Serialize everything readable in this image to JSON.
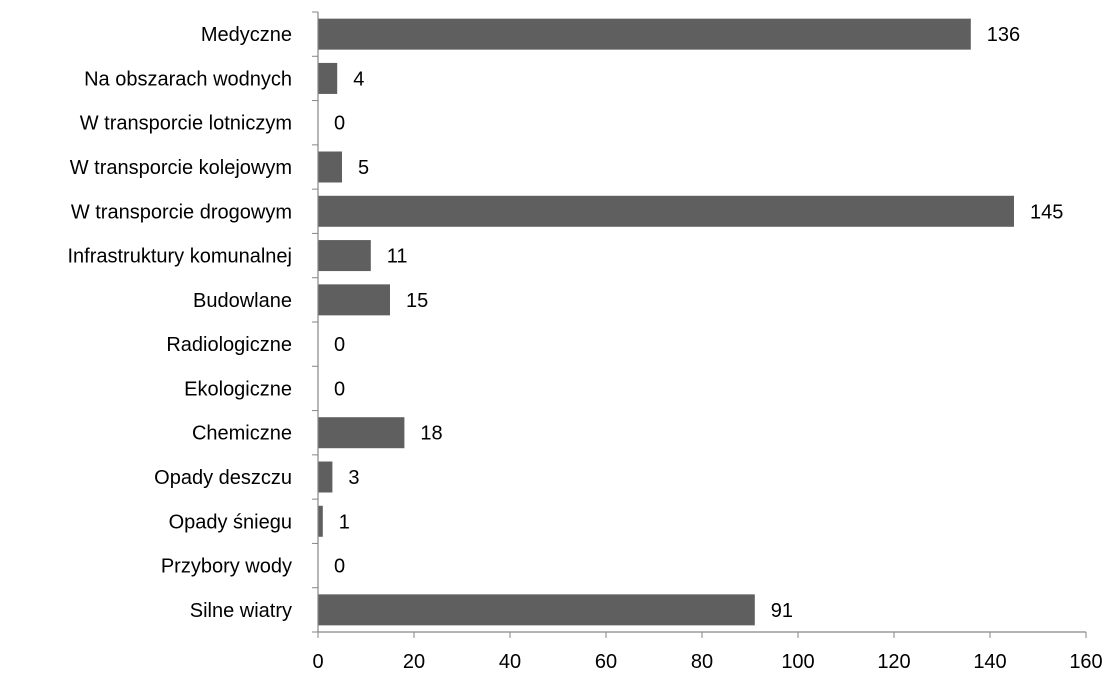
{
  "chart_data": {
    "type": "bar",
    "orientation": "horizontal",
    "title": "",
    "xlabel": "",
    "ylabel": "",
    "categories": [
      "Medyczne",
      "Na obszarach wodnych",
      "W transporcie lotniczym",
      "W transporcie kolejowym",
      "W transporcie drogowym",
      "Infrastruktury komunalnej",
      "Budowlane",
      "Radiologiczne",
      "Ekologiczne",
      "Chemiczne",
      "Opady deszczu",
      "Opady śniegu",
      "Przybory wody",
      "Silne wiatry"
    ],
    "values": [
      136,
      4,
      0,
      5,
      145,
      11,
      15,
      0,
      0,
      18,
      3,
      1,
      0,
      91
    ],
    "value_labels": [
      "136",
      "4",
      "0",
      "5",
      "145",
      "11",
      "15",
      "0",
      "0",
      "18",
      "3",
      "1",
      "0",
      "91"
    ],
    "xlim": [
      0,
      160
    ],
    "x_ticks": [
      0,
      20,
      40,
      60,
      80,
      100,
      120,
      140,
      160
    ],
    "x_tick_labels": [
      "0",
      "20",
      "40",
      "60",
      "80",
      "100",
      "120",
      "140",
      "160"
    ],
    "grid": false,
    "legend": "none",
    "colors": {
      "bar": "#5f5f5f",
      "axis": "#868686",
      "text": "#000000"
    }
  }
}
